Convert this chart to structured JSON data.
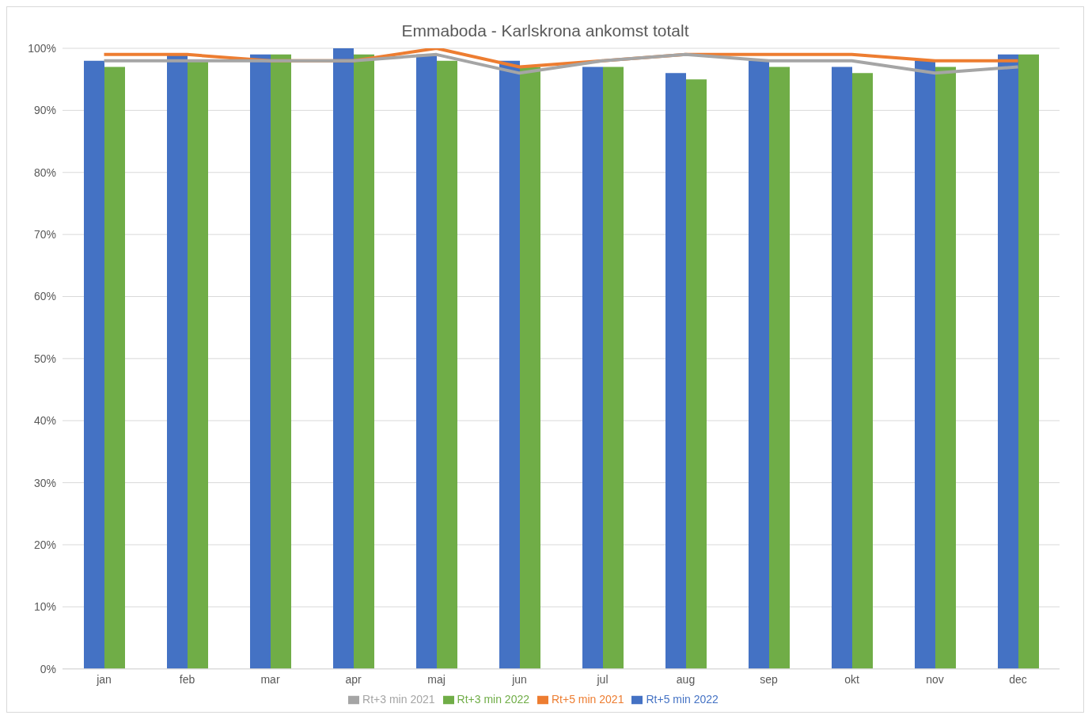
{
  "chart_data": {
    "type": "bar",
    "title": "Emmaboda - Karlskrona ankomst totalt",
    "categories": [
      "jan",
      "feb",
      "mar",
      "apr",
      "maj",
      "jun",
      "jul",
      "aug",
      "sep",
      "okt",
      "nov",
      "dec"
    ],
    "series": [
      {
        "name": "Rt+5 min 2022",
        "color": "#4472c4",
        "values": [
          98,
          99,
          99,
          100,
          99,
          98,
          97,
          96,
          98,
          97,
          98,
          99
        ]
      },
      {
        "name": "Rt+3 min 2022",
        "color": "#70ad47",
        "values": [
          97,
          98,
          99,
          99,
          98,
          97,
          97,
          95,
          97,
          96,
          97,
          99
        ]
      },
      {
        "name": "Rt+5 min 2021",
        "type": "line",
        "color": "#ed7d31",
        "values": [
          99,
          99,
          98,
          98,
          100,
          97,
          98,
          99,
          99,
          99,
          98,
          98
        ]
      },
      {
        "name": "Rt+3 min 2021",
        "type": "line",
        "color": "#a5a5a5",
        "values": [
          98,
          98,
          98,
          98,
          99,
          96,
          98,
          99,
          98,
          98,
          96,
          97
        ]
      }
    ],
    "ylim": [
      0,
      100
    ],
    "yticks": [
      {
        "value": 0,
        "label": "0%"
      },
      {
        "value": 10,
        "label": "10%"
      },
      {
        "value": 20,
        "label": "20%"
      },
      {
        "value": 30,
        "label": "30%"
      },
      {
        "value": 40,
        "label": "40%"
      },
      {
        "value": 50,
        "label": "50%"
      },
      {
        "value": 60,
        "label": "60%"
      },
      {
        "value": 70,
        "label": "70%"
      },
      {
        "value": 80,
        "label": "80%"
      },
      {
        "value": 90,
        "label": "90%"
      },
      {
        "value": 100,
        "label": "100%"
      }
    ],
    "grid": "y",
    "legend": "bottom",
    "marker": "none"
  }
}
